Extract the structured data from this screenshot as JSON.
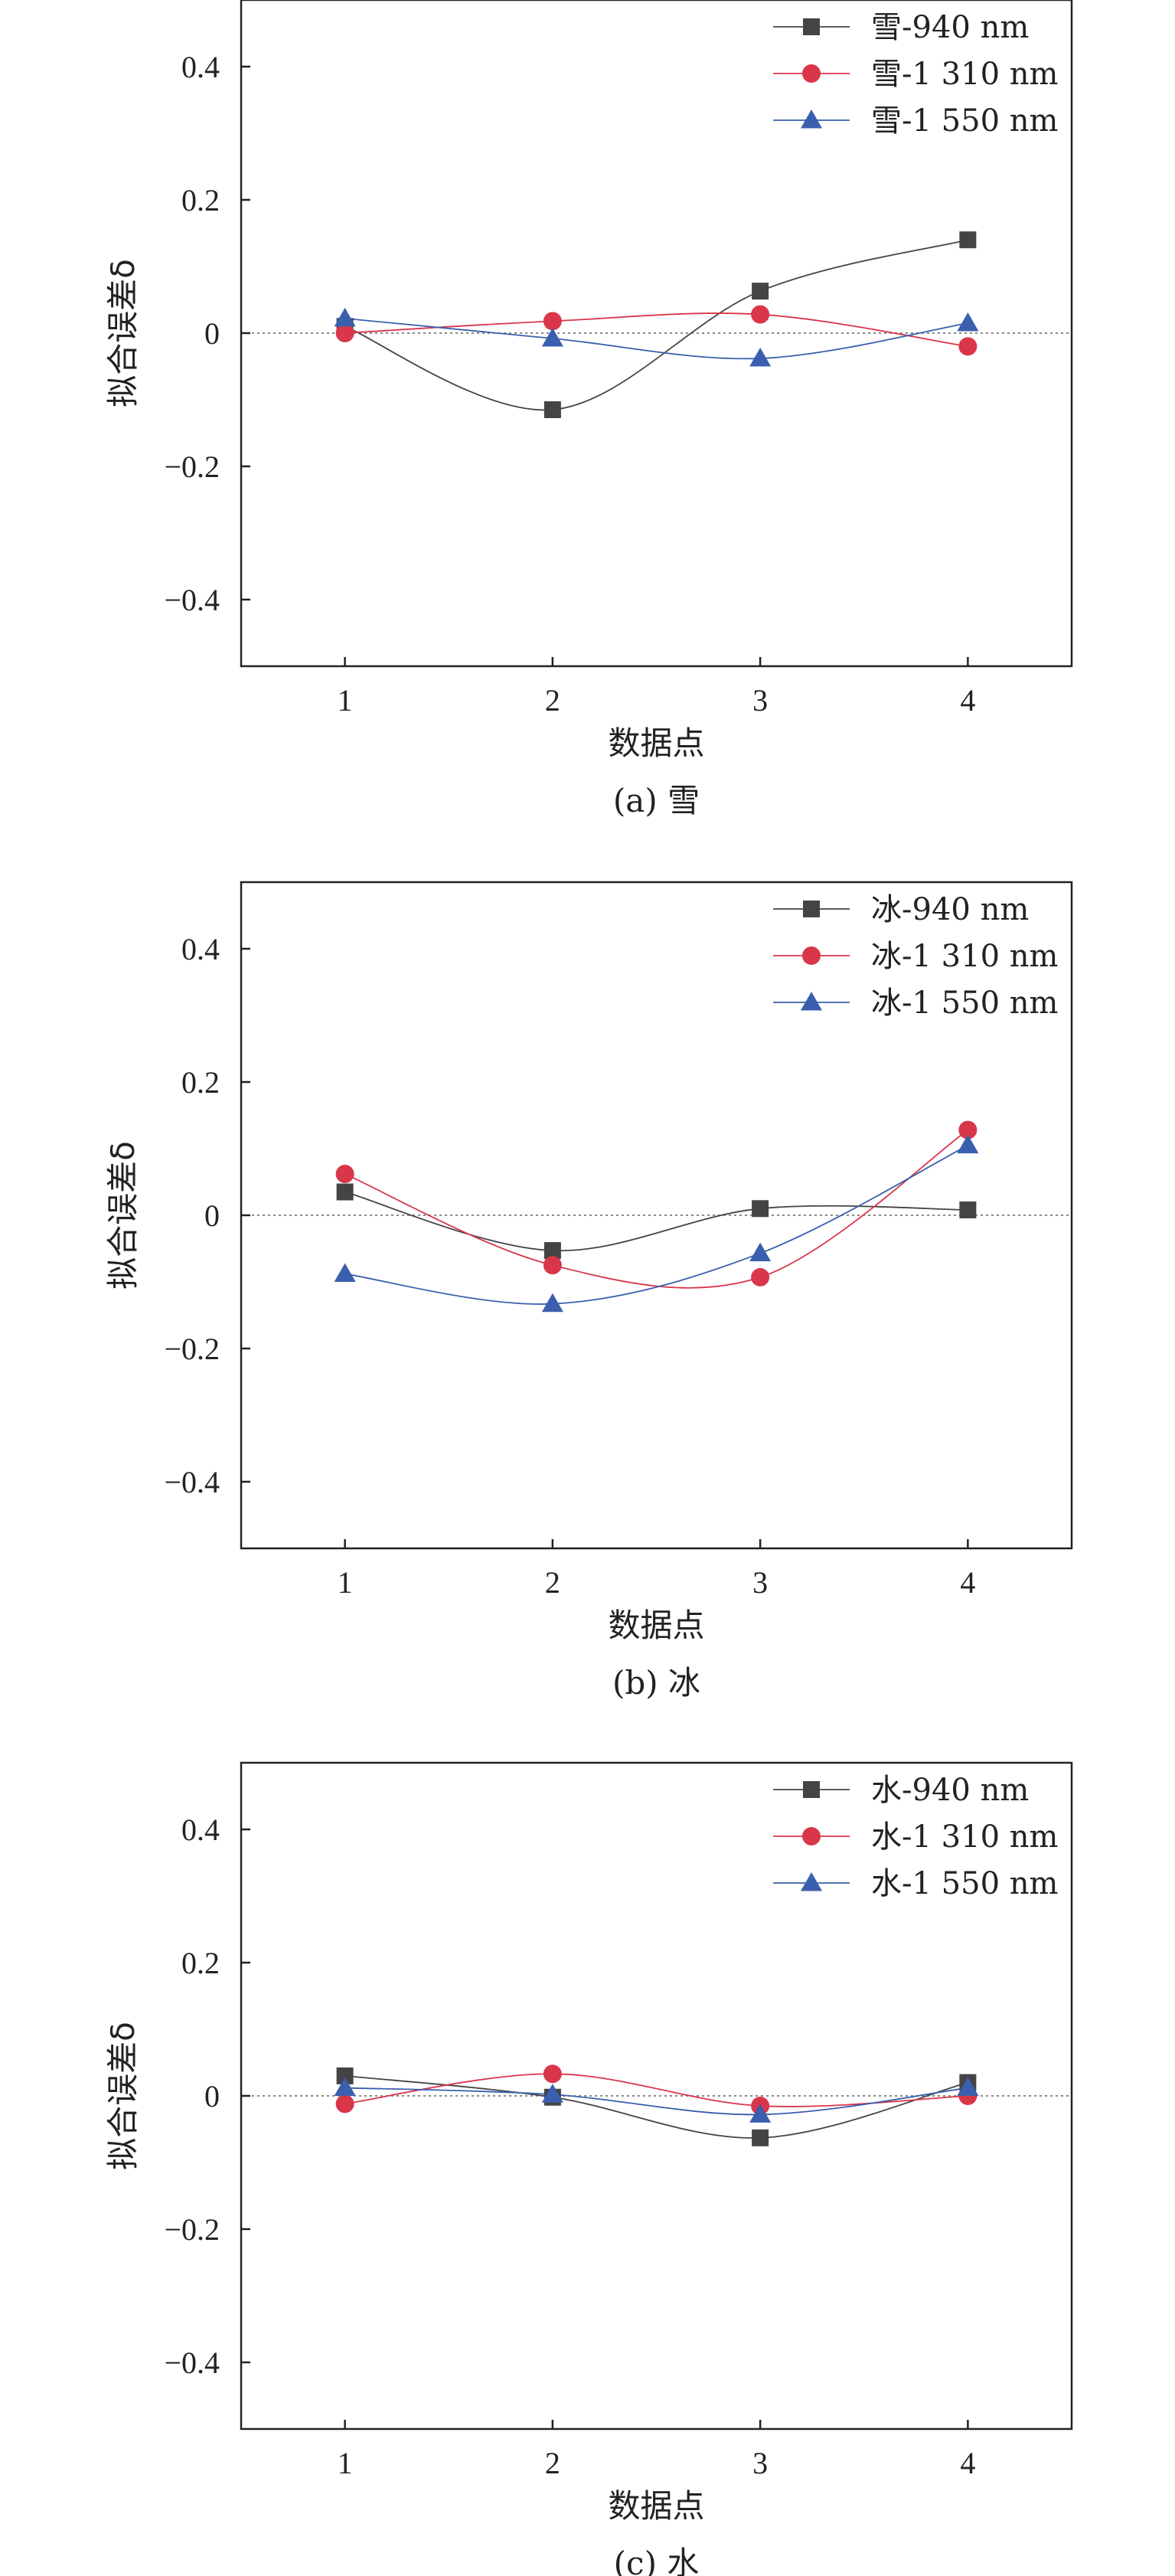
{
  "colors": {
    "s940": "#444444",
    "s1310": "#d9364a",
    "s1550": "#3a5fae",
    "axis": "#222222",
    "zero_line": "#888888"
  },
  "chart_data": [
    {
      "type": "line",
      "caption": "(a) 雪",
      "xlabel": "数据点",
      "ylabel": "拟合误差δ",
      "x": [
        1,
        2,
        3,
        4
      ],
      "xlim": [
        0.5,
        4.5
      ],
      "ylim": [
        -0.5,
        0.5
      ],
      "xticks": [
        "1",
        "2",
        "3",
        "4"
      ],
      "yticks": [
        {
          "value": 0.4,
          "label": "0.4"
        },
        {
          "value": 0.2,
          "label": "0.2"
        },
        {
          "value": 0,
          "label": "0"
        },
        {
          "value": -0.2,
          "label": "−0.2"
        },
        {
          "value": -0.4,
          "label": "−0.4"
        }
      ],
      "zero_line": true,
      "legend": "top-right",
      "series": [
        {
          "name": "雪-940 nm",
          "marker": "square",
          "color": "#444444",
          "values": [
            0.01,
            -0.115,
            0.063,
            0.14
          ]
        },
        {
          "name": "雪-1 310 nm",
          "marker": "circle",
          "color": "#d9364a",
          "values": [
            0.0,
            0.018,
            0.028,
            -0.02
          ]
        },
        {
          "name": "雪-1 550 nm",
          "marker": "triangle",
          "color": "#3a5fae",
          "values": [
            0.022,
            -0.008,
            -0.038,
            0.015
          ]
        }
      ]
    },
    {
      "type": "line",
      "caption": "(b) 冰",
      "xlabel": "数据点",
      "ylabel": "拟合误差δ",
      "x": [
        1,
        2,
        3,
        4
      ],
      "xlim": [
        0.5,
        4.5
      ],
      "ylim": [
        -0.5,
        0.5
      ],
      "xticks": [
        "1",
        "2",
        "3",
        "4"
      ],
      "yticks": [
        {
          "value": 0.4,
          "label": "0.4"
        },
        {
          "value": 0.2,
          "label": "0.2"
        },
        {
          "value": 0,
          "label": "0"
        },
        {
          "value": -0.2,
          "label": "−0.2"
        },
        {
          "value": -0.4,
          "label": "−0.4"
        }
      ],
      "zero_line": true,
      "legend": "top-right",
      "series": [
        {
          "name": "冰-940 nm",
          "marker": "square",
          "color": "#444444",
          "values": [
            0.035,
            -0.053,
            0.01,
            0.008
          ]
        },
        {
          "name": "冰-1 310 nm",
          "marker": "circle",
          "color": "#d9364a",
          "values": [
            0.062,
            -0.075,
            -0.093,
            0.128
          ]
        },
        {
          "name": "冰-1 550 nm",
          "marker": "triangle",
          "color": "#3a5fae",
          "values": [
            -0.088,
            -0.133,
            -0.057,
            0.105
          ]
        }
      ]
    },
    {
      "type": "line",
      "caption": "(c) 水",
      "xlabel": "数据点",
      "ylabel": "拟合误差δ",
      "x": [
        1,
        2,
        3,
        4
      ],
      "xlim": [
        0.5,
        4.5
      ],
      "ylim": [
        -0.5,
        0.5
      ],
      "xticks": [
        "1",
        "2",
        "3",
        "4"
      ],
      "yticks": [
        {
          "value": 0.4,
          "label": "0.4"
        },
        {
          "value": 0.2,
          "label": "0.2"
        },
        {
          "value": 0,
          "label": "0"
        },
        {
          "value": -0.2,
          "label": "−0.2"
        },
        {
          "value": -0.4,
          "label": "−0.4"
        }
      ],
      "zero_line": true,
      "legend": "top-right",
      "series": [
        {
          "name": "水-940 nm",
          "marker": "square",
          "color": "#444444",
          "values": [
            0.03,
            -0.002,
            -0.063,
            0.02
          ]
        },
        {
          "name": "水-1 310 nm",
          "marker": "circle",
          "color": "#d9364a",
          "values": [
            -0.012,
            0.033,
            -0.015,
            0.0
          ]
        },
        {
          "name": "水-1 550 nm",
          "marker": "triangle",
          "color": "#3a5fae",
          "values": [
            0.012,
            0.002,
            -0.028,
            0.012
          ]
        }
      ]
    }
  ]
}
